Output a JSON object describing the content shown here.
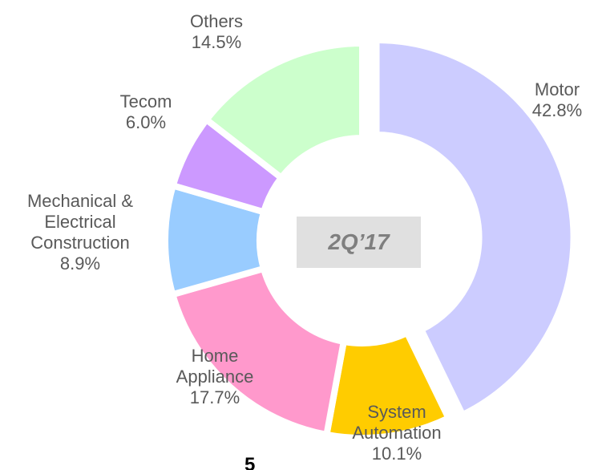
{
  "chart_data": {
    "type": "donut",
    "center_label": "2Q’17",
    "categories": [
      "Motor",
      "System Automation",
      "Home Appliance",
      "Mechanical & Electrical Construction",
      "Tecom",
      "Others"
    ],
    "values": [
      42.8,
      10.1,
      17.7,
      8.9,
      6.0,
      14.5
    ],
    "value_labels": [
      "42.8%",
      "10.1%",
      "17.7%",
      "8.9%",
      "6.0%",
      "14.5%"
    ],
    "colors": [
      "#ccccff",
      "#ffcc00",
      "#ff99cc",
      "#99ccff",
      "#cc99ff",
      "#ccffcc"
    ]
  },
  "page_number": "5"
}
